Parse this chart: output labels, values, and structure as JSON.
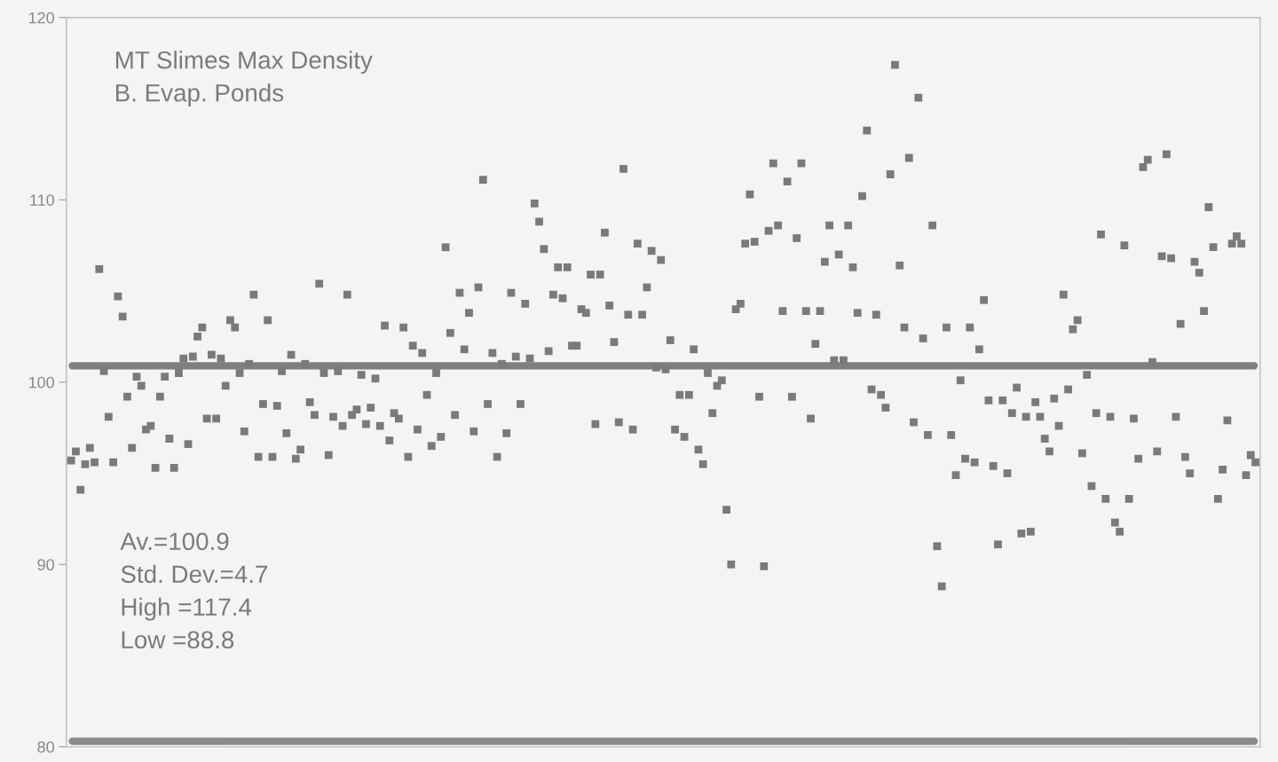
{
  "chart_data": {
    "type": "scatter",
    "title": "MT Slimes Max Density",
    "subtitle": "B. Evap. Ponds",
    "annotations": [
      "Av.=100.9",
      "Std. Dev.=4.7",
      "High =117.4",
      "Low =88.8"
    ],
    "categories": [
      null,
      null,
      null,
      null,
      null,
      null,
      null,
      null,
      null,
      null,
      null,
      null,
      null,
      null,
      null,
      null,
      null,
      null,
      null,
      null,
      null,
      null,
      null,
      null,
      null,
      null,
      null,
      null,
      null,
      null,
      null,
      null,
      null,
      null,
      null,
      null,
      null,
      null,
      null,
      null,
      null,
      null,
      null,
      null,
      null,
      null,
      null,
      null,
      null,
      null,
      null,
      null,
      null,
      null,
      null,
      null,
      null,
      null,
      null,
      null,
      null,
      null,
      null,
      null,
      null,
      null,
      null,
      null,
      null,
      null,
      null,
      null,
      null,
      null,
      null,
      null,
      null,
      null,
      null,
      null,
      null,
      null,
      null,
      null,
      null,
      null,
      null,
      null,
      null,
      null,
      null,
      null,
      null,
      null,
      null,
      null,
      null,
      null,
      null,
      null,
      null,
      null,
      null,
      null,
      null,
      null,
      null,
      null,
      null,
      null,
      null,
      null,
      null,
      null,
      null,
      null,
      null,
      null,
      null,
      null,
      null,
      null,
      null,
      null,
      null,
      null,
      null,
      null,
      null,
      null,
      null,
      null,
      null,
      null,
      null,
      null,
      null,
      null,
      null,
      null,
      null,
      null,
      null,
      null,
      null,
      null,
      null,
      null,
      null,
      null,
      null,
      null,
      null,
      null,
      null,
      null,
      null,
      null,
      null,
      null,
      null,
      null,
      null,
      null,
      null,
      null,
      null,
      null,
      null,
      null,
      null,
      null,
      null,
      null,
      null,
      null,
      null,
      null,
      null,
      null,
      null,
      null,
      null,
      null,
      null,
      null,
      null,
      null,
      null,
      null,
      null,
      null,
      null,
      null,
      null,
      null,
      null,
      null,
      null,
      null,
      null,
      null,
      null,
      null,
      null,
      null,
      null,
      null,
      null,
      null,
      null,
      null,
      null,
      null,
      null,
      null,
      null,
      null,
      null,
      null,
      null,
      null,
      null,
      null,
      null,
      null,
      null,
      null,
      null,
      null,
      null,
      null,
      null,
      null,
      null,
      null,
      null,
      null,
      null,
      null,
      null,
      null,
      null,
      null,
      null,
      null,
      null,
      null,
      null,
      null,
      null,
      null,
      null,
      null
    ],
    "series": [
      {
        "color": "#7a7a7a",
        "values": [
          95.7,
          96.2,
          94.1,
          95.5,
          96.4,
          95.6,
          106.2,
          100.6,
          98.1,
          95.6,
          104.7,
          103.6,
          99.2,
          96.4,
          100.3,
          99.8,
          97.4,
          97.6,
          95.3,
          99.2,
          100.3,
          96.9,
          95.3,
          100.5,
          101.3,
          96.6,
          101.4,
          102.5,
          103.0,
          98.0,
          101.5,
          98.0,
          101.3,
          99.8,
          103.4,
          103.0,
          100.5,
          97.3,
          101.0,
          104.8,
          95.9,
          98.8,
          103.4,
          95.9,
          98.7,
          100.6,
          97.2,
          101.5,
          95.8,
          96.3,
          101.0,
          98.9,
          98.2,
          105.4,
          100.5,
          96.0,
          98.1,
          100.6,
          97.6,
          104.8,
          98.2,
          98.5,
          100.4,
          97.7,
          98.6,
          100.2,
          97.6,
          103.1,
          96.8,
          98.3,
          98.0,
          103.0,
          95.9,
          102.0,
          97.4,
          101.6,
          99.3,
          96.5,
          100.5,
          97.0,
          107.4,
          102.7,
          98.2,
          104.9,
          101.8,
          103.8,
          97.3,
          105.2,
          111.1,
          98.8,
          101.6,
          95.9,
          101.0,
          97.2,
          104.9,
          101.4,
          98.8,
          104.3,
          101.3,
          109.8,
          108.8,
          107.3,
          101.7,
          104.8,
          106.3,
          104.6,
          106.3,
          102.0,
          102.0,
          104.0,
          103.8,
          105.9,
          97.7,
          105.9,
          108.2,
          104.2,
          102.2,
          97.8,
          111.7,
          103.7,
          97.4,
          107.6,
          103.7,
          105.2,
          107.2,
          100.8,
          106.7,
          100.7,
          102.3,
          97.4,
          99.3,
          97.0,
          99.3,
          101.8,
          96.3,
          95.5,
          100.5,
          98.3,
          99.8,
          100.1,
          93.0,
          90.0,
          104.0,
          104.3,
          107.6,
          110.3,
          107.7,
          99.2,
          89.9,
          108.3,
          112.0,
          108.6,
          103.9,
          111.0,
          99.2,
          107.9,
          112.0,
          103.9,
          98.0,
          102.1,
          103.9,
          106.6,
          108.6,
          101.2,
          107.0,
          101.2,
          108.6,
          106.3,
          103.8,
          110.2,
          113.8,
          99.6,
          103.7,
          99.3,
          98.6,
          111.4,
          117.4,
          106.4,
          103.0,
          112.3,
          97.8,
          115.6,
          102.4,
          97.1,
          108.6,
          91.0,
          88.8,
          103.0,
          97.1,
          94.9,
          100.1,
          95.8,
          103.0,
          95.6,
          101.8,
          104.5,
          99.0,
          95.4,
          91.1,
          99.0,
          95.0,
          98.3,
          99.7,
          91.7,
          98.1,
          91.8,
          98.9,
          98.1,
          96.9,
          96.2,
          99.1,
          97.6,
          104.8,
          99.6,
          102.9,
          103.4,
          96.1,
          100.4,
          94.3,
          98.3,
          108.1,
          93.6,
          98.1,
          92.3,
          91.8,
          107.5,
          93.6,
          98.0,
          95.8,
          111.8,
          112.2,
          101.1,
          96.2,
          106.9,
          112.5,
          106.8,
          98.1,
          103.2,
          95.9,
          95.0,
          106.6,
          106.0,
          103.9,
          109.6,
          107.4,
          93.6,
          95.2,
          97.9,
          107.6,
          108.0,
          107.6,
          94.9,
          96.0,
          95.6
        ]
      }
    ],
    "ref_lines": [
      {
        "axis": "y",
        "value": 100.9,
        "color": "#7f7f7f",
        "line_style": "solid"
      },
      {
        "axis": "y",
        "value": 80.3,
        "color": "#8a8a8a",
        "line_style": "solid"
      }
    ],
    "ylim": [
      80,
      120
    ],
    "yticks": [
      80,
      90,
      100,
      110,
      120
    ],
    "tick_labels": "y",
    "marker": "square",
    "grid": false,
    "legend": false
  }
}
